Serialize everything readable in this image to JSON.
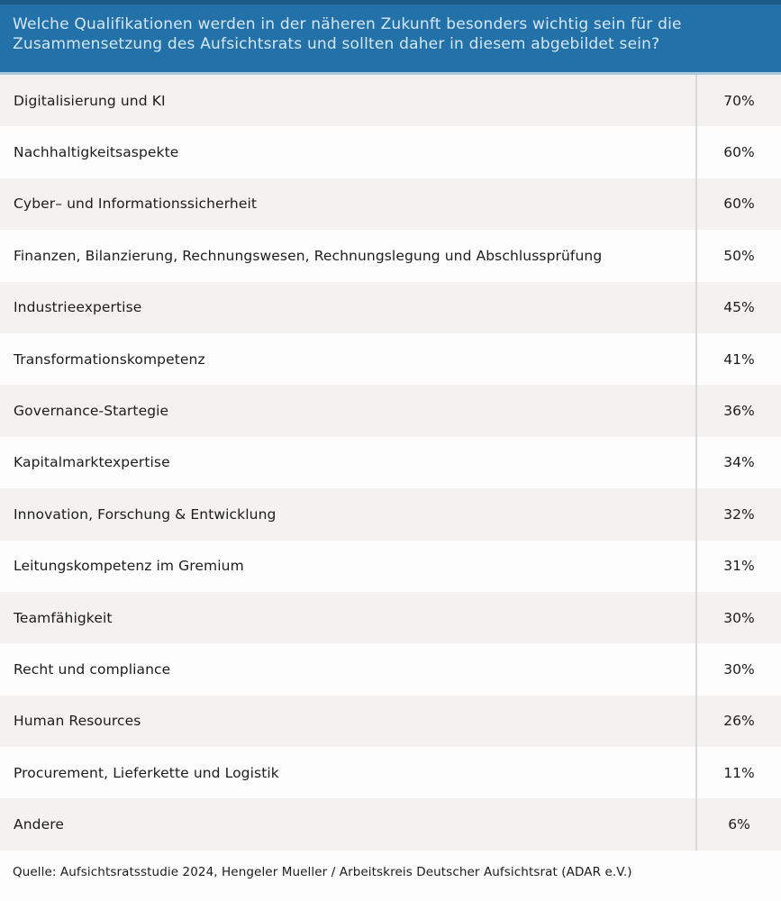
{
  "header": {
    "question": "Welche Qualifikationen werden in der näheren Zukunft besonders wichtig sein für die Zusammensetzung des Aufsichtsrats und sollten daher in diesem abgebildet sein?"
  },
  "rows": [
    {
      "label": "Digitalisierung und KI",
      "value": "70%"
    },
    {
      "label": "Nachhaltigkeitsaspekte",
      "value": "60%"
    },
    {
      "label": "Cyber– und Informationssicherheit",
      "value": "60%"
    },
    {
      "label": "Finanzen, Bilanzierung, Rechnungswesen, Rechnungslegung und Abschlussprüfung",
      "value": "50%"
    },
    {
      "label": "Industrieexpertise",
      "value": "45%"
    },
    {
      "label": "Transformationskompetenz",
      "value": "41%"
    },
    {
      "label": "Governance-Startegie",
      "value": "36%"
    },
    {
      "label": "Kapitalmarktexpertise",
      "value": "34%"
    },
    {
      "label": "Innovation, Forschung & Entwicklung",
      "value": "32%"
    },
    {
      "label": "Leitungskompetenz im Gremium",
      "value": "31%"
    },
    {
      "label": "Teamfähigkeit",
      "value": "30%"
    },
    {
      "label": "Recht und compliance",
      "value": "30%"
    },
    {
      "label": "Human Resources",
      "value": "26%"
    },
    {
      "label": "Procurement, Lieferkette und Logistik",
      "value": "11%"
    },
    {
      "label": "Andere",
      "value": "6%"
    }
  ],
  "footer": {
    "source": "Quelle: Aufsichtsratsstudie 2024, Hengeler Mueller / Arbeitskreis Deutscher Aufsichtsrat (ADAR e.V.)"
  },
  "chart_data": {
    "type": "table",
    "title": "Welche Qualifikationen werden in der näheren Zukunft besonders wichtig sein für die Zusammensetzung des Aufsichtsrats und sollten daher in diesem abgebildet sein?",
    "categories": [
      "Digitalisierung und KI",
      "Nachhaltigkeitsaspekte",
      "Cyber– und Informationssicherheit",
      "Finanzen, Bilanzierung, Rechnungswesen, Rechnungslegung und Abschlussprüfung",
      "Industrieexpertise",
      "Transformationskompetenz",
      "Governance-Startegie",
      "Kapitalmarktexpertise",
      "Innovation, Forschung & Entwicklung",
      "Leitungskompetenz im Gremium",
      "Teamfähigkeit",
      "Recht und compliance",
      "Human Resources",
      "Procurement, Lieferkette und Logistik",
      "Andere"
    ],
    "values": [
      70,
      60,
      60,
      50,
      45,
      41,
      36,
      34,
      32,
      31,
      30,
      30,
      26,
      11,
      6
    ],
    "unit": "%",
    "source": "Quelle: Aufsichtsratsstudie 2024, Hengeler Mueller / Arbeitskreis Deutscher Aufsichtsrat (ADAR e.V.)"
  },
  "colors": {
    "header_background": "#2272a9",
    "header_top_strip": "#1b5a86",
    "header_bottom_border": "#a9c7dd",
    "header_text": "#d6e6f3",
    "row_alt_background": "#f3f2f0",
    "row_background": "#fdfdfd",
    "divider": "#d9d9d9",
    "row_text": "#1c1c1c"
  }
}
